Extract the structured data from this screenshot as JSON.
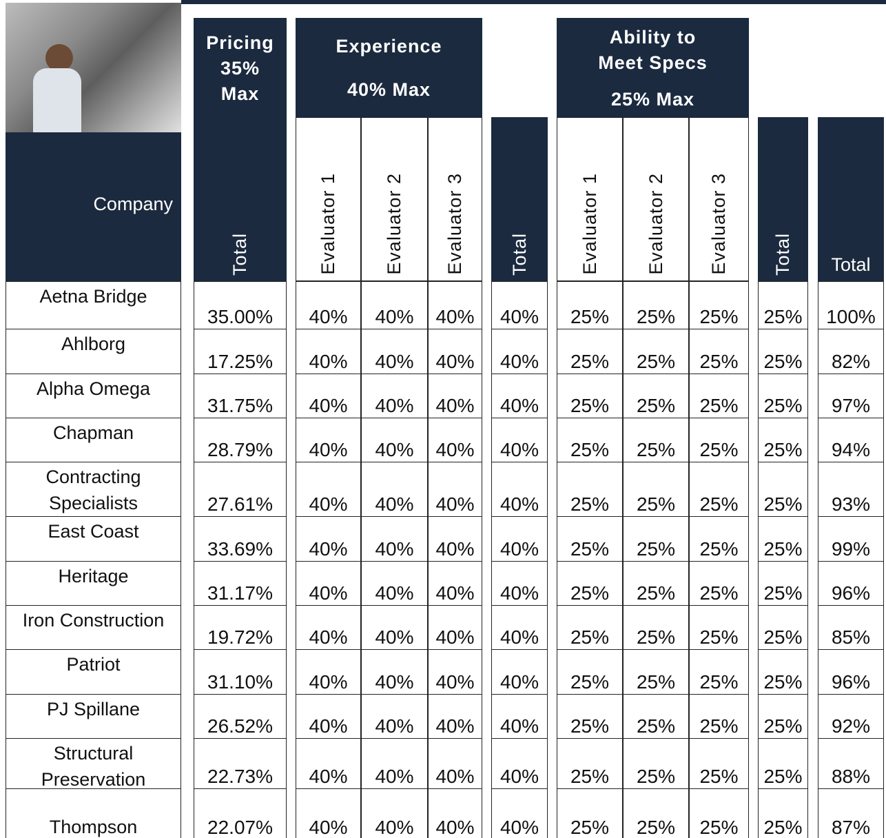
{
  "header": {
    "pricing": {
      "lines": [
        "Pricing",
        "35%",
        "Max"
      ]
    },
    "experience": {
      "title": "Experience",
      "subtitle": "40% Max"
    },
    "specs": {
      "title": "Ability to Meet Specs",
      "subtitle": "25% Max"
    }
  },
  "table": {
    "column_headers": [
      "Company",
      "Total",
      "Evaluator 1",
      "Evaluator 2",
      "Evaluator 3",
      "Total",
      "Evaluator 1",
      "Evaluator 2",
      "Evaluator 3",
      "Total",
      "Total"
    ],
    "rows": [
      [
        "Aetna Bridge",
        "35.00%",
        "40%",
        "40%",
        "40%",
        "40%",
        "25%",
        "25%",
        "25%",
        "25%",
        "100%"
      ],
      [
        "Ahlborg",
        "17.25%",
        "40%",
        "40%",
        "40%",
        "40%",
        "25%",
        "25%",
        "25%",
        "25%",
        "82%"
      ],
      [
        "Alpha Omega",
        "31.75%",
        "40%",
        "40%",
        "40%",
        "40%",
        "25%",
        "25%",
        "25%",
        "25%",
        "97%"
      ],
      [
        "Chapman",
        "28.79%",
        "40%",
        "40%",
        "40%",
        "40%",
        "25%",
        "25%",
        "25%",
        "25%",
        "94%"
      ],
      [
        "Contracting Specialists",
        "27.61%",
        "40%",
        "40%",
        "40%",
        "40%",
        "25%",
        "25%",
        "25%",
        "25%",
        "93%"
      ],
      [
        "East Coast",
        "33.69%",
        "40%",
        "40%",
        "40%",
        "40%",
        "25%",
        "25%",
        "25%",
        "25%",
        "99%"
      ],
      [
        "Heritage",
        "31.17%",
        "40%",
        "40%",
        "40%",
        "40%",
        "25%",
        "25%",
        "25%",
        "25%",
        "96%"
      ],
      [
        "Iron Construction",
        "19.72%",
        "40%",
        "40%",
        "40%",
        "40%",
        "25%",
        "25%",
        "25%",
        "25%",
        "85%"
      ],
      [
        "Patriot",
        "31.10%",
        "40%",
        "40%",
        "40%",
        "40%",
        "25%",
        "25%",
        "25%",
        "25%",
        "96%"
      ],
      [
        "PJ Spillane",
        "26.52%",
        "40%",
        "40%",
        "40%",
        "40%",
        "25%",
        "25%",
        "25%",
        "25%",
        "92%"
      ],
      [
        "Structural Preservation",
        "22.73%",
        "40%",
        "40%",
        "40%",
        "40%",
        "25%",
        "25%",
        "25%",
        "25%",
        "88%"
      ],
      [
        "Thompson",
        "22.07%",
        "40%",
        "40%",
        "40%",
        "40%",
        "25%",
        "25%",
        "25%",
        "25%",
        "87%"
      ]
    ]
  }
}
